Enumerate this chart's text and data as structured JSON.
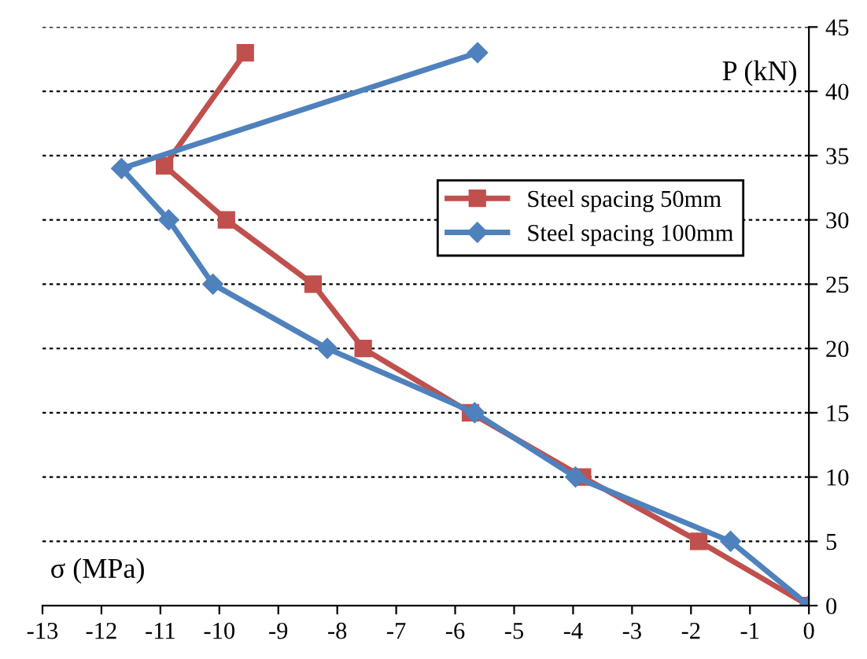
{
  "chart_data": {
    "type": "line",
    "xlabel": "σ (MPa)",
    "ylabel": "P (kN)",
    "xlim": [
      -13,
      0
    ],
    "xticks": [
      -13,
      -12,
      -11,
      -10,
      -9,
      -8,
      -7,
      -6,
      -5,
      -4,
      -3,
      -2,
      -1,
      0
    ],
    "ylim": [
      0,
      45
    ],
    "yticks": [
      0,
      5,
      10,
      15,
      20,
      25,
      30,
      35,
      40,
      45
    ],
    "grid": "y",
    "legend": "right",
    "line_style": "solid",
    "series": [
      {
        "name": "Steel spacing 50mm",
        "color": "#c0504d",
        "marker": "square",
        "x": [
          0,
          -1.87,
          -3.84,
          -5.74,
          -7.56,
          -8.41,
          -9.88,
          -10.93,
          -9.56
        ],
        "values": [
          0,
          5,
          10,
          15,
          20,
          25,
          30,
          34.2,
          43
        ]
      },
      {
        "name": "Steel spacing 100mm",
        "color": "#4f81bd",
        "marker": "diamond",
        "x": [
          0,
          -1.33,
          -3.96,
          -5.67,
          -8.17,
          -10.11,
          -10.86,
          -11.66,
          -5.62
        ],
        "values": [
          0,
          5,
          10,
          15,
          20,
          25,
          30,
          34,
          43
        ]
      }
    ]
  }
}
